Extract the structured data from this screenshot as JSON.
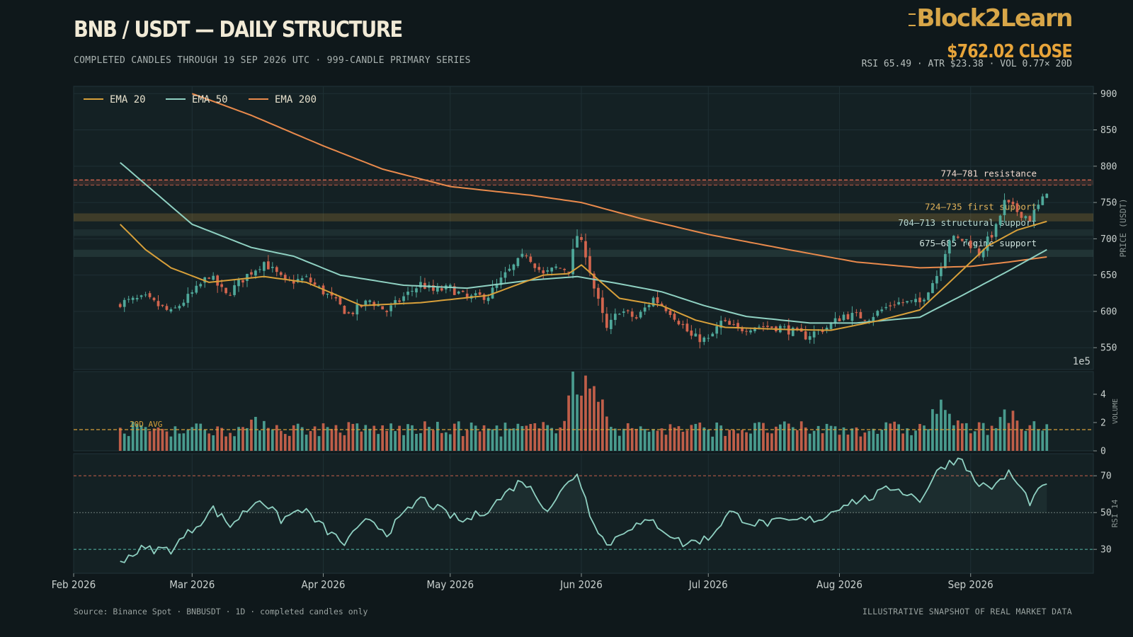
{
  "header": {
    "title": "BNB / USDT — DAILY STRUCTURE",
    "subtitle": "COMPLETED CANDLES THROUGH 19 SEP 2026 UTC  ·  999-CANDLE PRIMARY SERIES",
    "logo": "Block2Learn",
    "close_label": "$762.02 CLOSE",
    "stats": "RSI 65.49  ·  ATR $23.38  ·  VOL 0.77× 20D"
  },
  "footer": {
    "source": "Source: Binance Spot · BNBUSDT · 1D · completed candles only",
    "disclaimer": "ILLUSTRATIVE SNAPSHOT OF REAL MARKET DATA"
  },
  "colors": {
    "background": "#0f181b",
    "panel": "#142124",
    "bull": "#4fa89a",
    "bear": "#d2654e",
    "ema20": "#d8a03a",
    "ema50": "#8fd1c2",
    "ema200": "#e98a4c",
    "resistance": "#d2654e",
    "support": "#d8a03a",
    "accent": "#e7a43a"
  },
  "chart_data": {
    "type": "candlestick",
    "x_axis": {
      "range": [
        "2026-02-01",
        "2026-09-30"
      ],
      "ticks": [
        {
          "date": "2026-02-01",
          "label": "Feb 2026"
        },
        {
          "date": "2026-03-01",
          "label": "Mar 2026"
        },
        {
          "date": "2026-04-01",
          "label": "Apr 2026"
        },
        {
          "date": "2026-05-01",
          "label": "May 2026"
        },
        {
          "date": "2026-06-01",
          "label": "Jun 2026"
        },
        {
          "date": "2026-07-01",
          "label": "Jul 2026"
        },
        {
          "date": "2026-08-01",
          "label": "Aug 2026"
        },
        {
          "date": "2026-09-01",
          "label": "Sep 2026"
        }
      ]
    },
    "price_panel": {
      "ylabel": "PRICE (USDT)",
      "ylim": [
        520,
        910
      ],
      "ticks": [
        550,
        600,
        650,
        700,
        750,
        800,
        850,
        900
      ],
      "offset_label": "1e5",
      "legend": [
        "EMA 20",
        "EMA 50",
        "EMA 200"
      ],
      "legend_position": "top-left",
      "first_date": "2026-02-12",
      "last_date": "2026-09-19",
      "close_keypoints": [
        [
          "2026-02-12",
          612
        ],
        [
          "2026-02-18",
          618
        ],
        [
          "2026-02-24",
          598
        ],
        [
          "2026-03-02",
          630
        ],
        [
          "2026-03-05",
          650
        ],
        [
          "2026-03-09",
          622
        ],
        [
          "2026-03-14",
          650
        ],
        [
          "2026-03-18",
          668
        ],
        [
          "2026-03-23",
          640
        ],
        [
          "2026-03-28",
          645
        ],
        [
          "2026-04-03",
          618
        ],
        [
          "2026-04-07",
          596
        ],
        [
          "2026-04-12",
          615
        ],
        [
          "2026-04-16",
          600
        ],
        [
          "2026-04-20",
          620
        ],
        [
          "2026-04-24",
          638
        ],
        [
          "2026-04-27",
          628
        ],
        [
          "2026-05-01",
          632
        ],
        [
          "2026-05-05",
          618
        ],
        [
          "2026-05-10",
          622
        ],
        [
          "2026-05-14",
          650
        ],
        [
          "2026-05-19",
          680
        ],
        [
          "2026-05-23",
          650
        ],
        [
          "2026-05-26",
          660
        ],
        [
          "2026-05-29",
          658
        ],
        [
          "2026-05-31",
          705
        ],
        [
          "2026-06-02",
          680
        ],
        [
          "2026-06-04",
          632
        ],
        [
          "2026-06-07",
          575
        ],
        [
          "2026-06-10",
          602
        ],
        [
          "2026-06-14",
          590
        ],
        [
          "2026-06-18",
          618
        ],
        [
          "2026-06-22",
          600
        ],
        [
          "2026-06-25",
          580
        ],
        [
          "2026-06-27",
          565
        ],
        [
          "2026-07-01",
          560
        ],
        [
          "2026-07-04",
          585
        ],
        [
          "2026-07-08",
          575
        ],
        [
          "2026-07-12",
          580
        ],
        [
          "2026-07-18",
          578
        ],
        [
          "2026-07-24",
          566
        ],
        [
          "2026-07-29",
          578
        ],
        [
          "2026-08-02",
          595
        ],
        [
          "2026-08-08",
          592
        ],
        [
          "2026-08-14",
          612
        ],
        [
          "2026-08-20",
          612
        ],
        [
          "2026-08-24",
          650
        ],
        [
          "2026-08-27",
          700
        ],
        [
          "2026-08-31",
          698
        ],
        [
          "2026-09-03",
          680
        ],
        [
          "2026-09-07",
          715
        ],
        [
          "2026-09-09",
          750
        ],
        [
          "2026-09-12",
          738
        ],
        [
          "2026-09-15",
          728
        ],
        [
          "2026-09-17",
          745
        ],
        [
          "2026-09-19",
          762.02
        ]
      ],
      "ema20_keypoints": [
        [
          "2026-02-12",
          720
        ],
        [
          "2026-02-18",
          685
        ],
        [
          "2026-02-24",
          660
        ],
        [
          "2026-03-05",
          640
        ],
        [
          "2026-03-18",
          648
        ],
        [
          "2026-03-28",
          640
        ],
        [
          "2026-04-10",
          608
        ],
        [
          "2026-04-24",
          612
        ],
        [
          "2026-05-10",
          622
        ],
        [
          "2026-05-23",
          650
        ],
        [
          "2026-05-29",
          652
        ],
        [
          "2026-06-01",
          664
        ],
        [
          "2026-06-10",
          618
        ],
        [
          "2026-06-20",
          608
        ],
        [
          "2026-06-28",
          588
        ],
        [
          "2026-07-05",
          578
        ],
        [
          "2026-07-20",
          575
        ],
        [
          "2026-07-30",
          574
        ],
        [
          "2026-08-10",
          587
        ],
        [
          "2026-08-20",
          602
        ],
        [
          "2026-08-27",
          640
        ],
        [
          "2026-09-05",
          690
        ],
        [
          "2026-09-12",
          712
        ],
        [
          "2026-09-19",
          724
        ]
      ],
      "ema50_keypoints": [
        [
          "2026-02-12",
          805
        ],
        [
          "2026-02-20",
          765
        ],
        [
          "2026-03-01",
          720
        ],
        [
          "2026-03-15",
          688
        ],
        [
          "2026-03-25",
          676
        ],
        [
          "2026-04-05",
          650
        ],
        [
          "2026-04-20",
          636
        ],
        [
          "2026-05-05",
          632
        ],
        [
          "2026-05-20",
          643
        ],
        [
          "2026-05-31",
          648
        ],
        [
          "2026-06-10",
          638
        ],
        [
          "2026-06-20",
          627
        ],
        [
          "2026-06-30",
          608
        ],
        [
          "2026-07-10",
          593
        ],
        [
          "2026-07-25",
          584
        ],
        [
          "2026-08-05",
          584
        ],
        [
          "2026-08-20",
          592
        ],
        [
          "2026-08-30",
          622
        ],
        [
          "2026-09-10",
          656
        ],
        [
          "2026-09-19",
          685
        ]
      ],
      "ema200_keypoints": [
        [
          "2026-03-01",
          900
        ],
        [
          "2026-03-15",
          870
        ],
        [
          "2026-04-01",
          828
        ],
        [
          "2026-04-15",
          796
        ],
        [
          "2026-05-01",
          772
        ],
        [
          "2026-05-20",
          760
        ],
        [
          "2026-06-01",
          750
        ],
        [
          "2026-06-15",
          728
        ],
        [
          "2026-07-01",
          706
        ],
        [
          "2026-07-20",
          685
        ],
        [
          "2026-08-05",
          668
        ],
        [
          "2026-08-20",
          660
        ],
        [
          "2026-09-01",
          662
        ],
        [
          "2026-09-10",
          668
        ],
        [
          "2026-09-19",
          675
        ]
      ],
      "zones": [
        {
          "low": 774,
          "high": 781,
          "label": "774–781 resistance",
          "kind": "resistance"
        },
        {
          "low": 724,
          "high": 735,
          "label": "724–735 first support",
          "kind": "first"
        },
        {
          "low": 704,
          "high": 713,
          "label": "704–713 structural support",
          "kind": "structural"
        },
        {
          "low": 675,
          "high": 685,
          "label": "675–685 regime support",
          "kind": "regime"
        }
      ]
    },
    "volume_panel": {
      "ylabel": "VOLUME",
      "ylim": [
        0,
        5.6
      ],
      "ticks": [
        0,
        2,
        4
      ],
      "avg_label": "20D AVG",
      "avg_value": 1.5
    },
    "rsi_panel": {
      "ylabel": "RSI 14",
      "ylim": [
        17,
        82
      ],
      "ticks": [
        30,
        50,
        70
      ],
      "overbought": 70,
      "midline": 50,
      "oversold": 30,
      "keypoints": [
        [
          "2026-02-12",
          24
        ],
        [
          "2026-02-17",
          30
        ],
        [
          "2026-02-24",
          30
        ],
        [
          "2026-03-02",
          43
        ],
        [
          "2026-03-06",
          52
        ],
        [
          "2026-03-10",
          43
        ],
        [
          "2026-03-17",
          58
        ],
        [
          "2026-03-22",
          46
        ],
        [
          "2026-03-27",
          52
        ],
        [
          "2026-04-02",
          40
        ],
        [
          "2026-04-06",
          33
        ],
        [
          "2026-04-12",
          47
        ],
        [
          "2026-04-16",
          39
        ],
        [
          "2026-04-24",
          58
        ],
        [
          "2026-04-28",
          52
        ],
        [
          "2026-05-04",
          45
        ],
        [
          "2026-05-10",
          52
        ],
        [
          "2026-05-18",
          68
        ],
        [
          "2026-05-24",
          52
        ],
        [
          "2026-05-31",
          72
        ],
        [
          "2026-06-03",
          50
        ],
        [
          "2026-06-07",
          32
        ],
        [
          "2026-06-12",
          42
        ],
        [
          "2026-06-18",
          45
        ],
        [
          "2026-06-25",
          33
        ],
        [
          "2026-07-01",
          36
        ],
        [
          "2026-07-06",
          50
        ],
        [
          "2026-07-12",
          44
        ],
        [
          "2026-07-20",
          45
        ],
        [
          "2026-07-28",
          47
        ],
        [
          "2026-08-02",
          55
        ],
        [
          "2026-08-08",
          58
        ],
        [
          "2026-08-14",
          64
        ],
        [
          "2026-08-20",
          57
        ],
        [
          "2026-08-25",
          75
        ],
        [
          "2026-08-30",
          80
        ],
        [
          "2026-09-02",
          66
        ],
        [
          "2026-09-07",
          64
        ],
        [
          "2026-09-10",
          72
        ],
        [
          "2026-09-15",
          56
        ],
        [
          "2026-09-19",
          65.49
        ]
      ]
    }
  }
}
